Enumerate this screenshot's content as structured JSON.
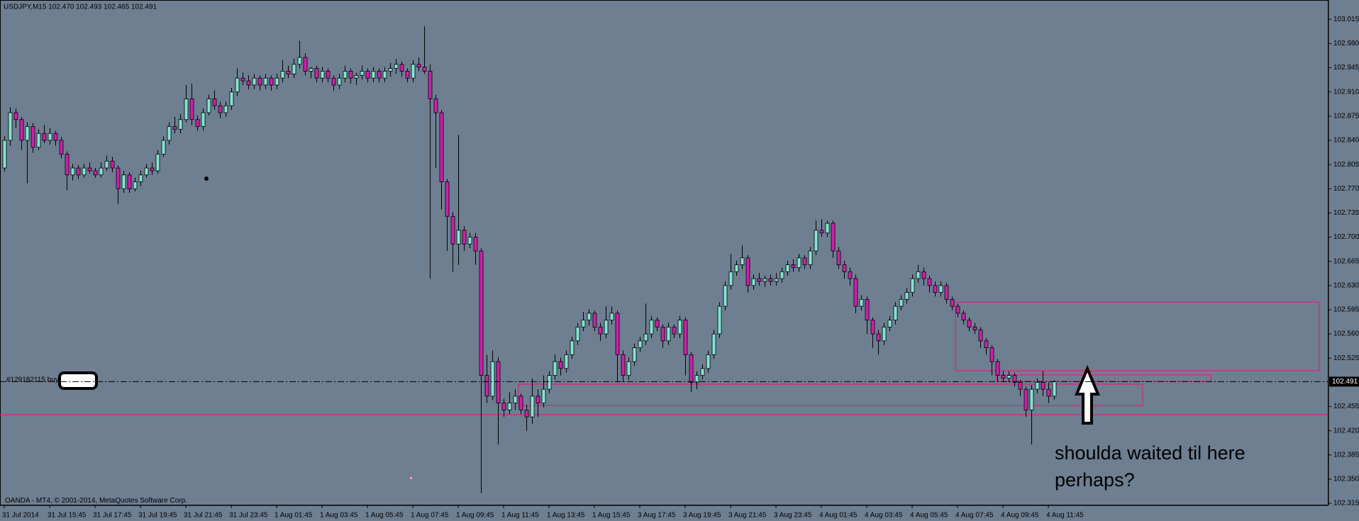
{
  "chart_data": {
    "type": "candlestick",
    "title": "USDJPY,M15  102.470 102.493 102.465 102.491",
    "footer": "OANDA - MT4, © 2001-2014, MetaQuotes Software Corp.",
    "order_label": "#129182115 buy",
    "annotation": [
      "shoulda waited til here",
      "perhaps?"
    ],
    "current_price": 102.491,
    "up_color": "#86e3d2",
    "down_color": "#cc22aa",
    "wick_color": "#000000",
    "ylim": [
      102.312,
      103.043
    ],
    "yticks": [
      103.015,
      {
        "value": 102.98,
        "label": "102.980"
      },
      102.945,
      {
        "value": 102.91,
        "label": "102.910"
      },
      102.875,
      {
        "value": 102.84,
        "label": "102.840"
      },
      102.805,
      {
        "value": 102.77,
        "label": "102.770"
      },
      102.735,
      {
        "value": 102.7,
        "label": "102.700"
      },
      102.665,
      {
        "value": 102.63,
        "label": "102.630"
      },
      102.595,
      {
        "value": 102.56,
        "label": "102.560"
      },
      102.525,
      102.455,
      {
        "value": 102.42,
        "label": "102.420"
      },
      102.385,
      {
        "value": 102.35,
        "label": "102.350"
      },
      102.315
    ],
    "x_tick_labels": [
      "31 Jul 2014",
      "31 Jul 15:45",
      "31 Jul 17:45",
      "31 Jul 19:45",
      "31 Jul 21:45",
      "31 Jul 23:45",
      "1 Aug 01:45",
      "1 Aug 03:45",
      "1 Aug 05:45",
      "1 Aug 07:45",
      "1 Aug 09:45",
      "1 Aug 11:45",
      "1 Aug 13:45",
      "1 Aug 15:45",
      "3 Aug 17:45",
      "3 Aug 19:45",
      "3 Aug 21:45",
      "3 Aug 23:45",
      "4 Aug 01:45",
      "4 Aug 03:45",
      "4 Aug 05:45",
      "4 Aug 07:45",
      "4 Aug 09:45",
      "4 Aug 11:45"
    ],
    "ohlc": [
      [
        102.8,
        102.846,
        102.795,
        102.84
      ],
      [
        102.84,
        102.888,
        102.832,
        102.88
      ],
      [
        102.88,
        102.886,
        102.858,
        102.87
      ],
      [
        102.87,
        102.874,
        102.826,
        102.84
      ],
      [
        102.84,
        102.866,
        102.778,
        102.86
      ],
      [
        102.86,
        102.865,
        102.822,
        102.83
      ],
      [
        102.83,
        102.856,
        102.826,
        102.85
      ],
      [
        102.85,
        102.862,
        102.836,
        102.84
      ],
      [
        102.84,
        102.858,
        102.834,
        102.85
      ],
      [
        102.85,
        102.854,
        102.832,
        102.84
      ],
      [
        102.84,
        102.845,
        102.814,
        102.82
      ],
      [
        102.82,
        102.824,
        102.768,
        102.79
      ],
      [
        102.79,
        102.806,
        102.782,
        102.8
      ],
      [
        102.8,
        102.804,
        102.784,
        102.79
      ],
      [
        102.79,
        102.806,
        102.786,
        102.8
      ],
      [
        102.8,
        102.808,
        102.792,
        102.796
      ],
      [
        102.796,
        102.8,
        102.786,
        102.79
      ],
      [
        102.79,
        102.808,
        102.786,
        102.8
      ],
      [
        102.8,
        102.818,
        102.796,
        102.81
      ],
      [
        102.81,
        102.816,
        102.794,
        102.8
      ],
      [
        102.8,
        102.804,
        102.748,
        102.77
      ],
      [
        102.77,
        102.796,
        102.764,
        102.79
      ],
      [
        102.79,
        102.794,
        102.764,
        102.77
      ],
      [
        102.77,
        102.786,
        102.766,
        102.78
      ],
      [
        102.78,
        102.796,
        102.774,
        102.79
      ],
      [
        102.79,
        102.806,
        102.786,
        102.8
      ],
      [
        102.8,
        102.808,
        102.79,
        102.796
      ],
      [
        102.796,
        102.826,
        102.792,
        102.82
      ],
      [
        102.82,
        102.846,
        102.816,
        102.84
      ],
      [
        102.84,
        102.866,
        102.834,
        102.86
      ],
      [
        102.86,
        102.874,
        102.85,
        102.856
      ],
      [
        102.856,
        102.878,
        102.85,
        102.87
      ],
      [
        102.87,
        102.92,
        102.866,
        102.9
      ],
      [
        102.9,
        102.922,
        102.862,
        102.87
      ],
      [
        102.87,
        102.876,
        102.854,
        102.86
      ],
      [
        102.86,
        102.886,
        102.854,
        102.88
      ],
      [
        102.88,
        102.906,
        102.876,
        102.9
      ],
      [
        102.9,
        102.912,
        102.884,
        102.89
      ],
      [
        102.89,
        102.896,
        102.872,
        102.88
      ],
      [
        102.88,
        102.896,
        102.874,
        102.89
      ],
      [
        102.89,
        102.916,
        102.884,
        102.91
      ],
      [
        102.91,
        102.944,
        102.904,
        102.93
      ],
      [
        102.93,
        102.938,
        102.92,
        102.926
      ],
      [
        102.926,
        102.934,
        102.914,
        102.92
      ],
      [
        102.92,
        102.936,
        102.914,
        102.93
      ],
      [
        102.93,
        102.934,
        102.912,
        102.92
      ],
      [
        102.92,
        102.936,
        102.914,
        102.93
      ],
      [
        102.93,
        102.934,
        102.912,
        102.92
      ],
      [
        102.92,
        102.936,
        102.914,
        102.93
      ],
      [
        102.93,
        102.956,
        102.924,
        102.94
      ],
      [
        102.94,
        102.948,
        102.93,
        102.936
      ],
      [
        102.936,
        102.958,
        102.93,
        102.95
      ],
      [
        102.95,
        102.984,
        102.944,
        102.96
      ],
      [
        102.96,
        102.966,
        102.934,
        102.94
      ],
      [
        102.94,
        102.946,
        102.93,
        102.944
      ],
      [
        102.944,
        102.948,
        102.924,
        102.93
      ],
      [
        102.93,
        102.946,
        102.924,
        102.94
      ],
      [
        102.94,
        102.944,
        102.924,
        102.93
      ],
      [
        102.93,
        102.934,
        102.912,
        102.92
      ],
      [
        102.92,
        102.936,
        102.914,
        102.93
      ],
      [
        102.93,
        102.948,
        102.924,
        102.94
      ],
      [
        102.94,
        102.944,
        102.922,
        102.93
      ],
      [
        102.93,
        102.938,
        102.92,
        102.934
      ],
      [
        102.934,
        102.948,
        102.928,
        102.94
      ],
      [
        102.94,
        102.944,
        102.924,
        102.93
      ],
      [
        102.93,
        102.946,
        102.924,
        102.94
      ],
      [
        102.94,
        102.944,
        102.924,
        102.93
      ],
      [
        102.93,
        102.946,
        102.924,
        102.94
      ],
      [
        102.94,
        102.952,
        102.932,
        102.944
      ],
      [
        102.944,
        102.958,
        102.936,
        102.95
      ],
      [
        102.95,
        102.954,
        102.932,
        102.94
      ],
      [
        102.94,
        102.944,
        102.924,
        102.93
      ],
      [
        102.93,
        102.956,
        102.924,
        102.95
      ],
      [
        102.95,
        102.96,
        102.94,
        102.946
      ],
      [
        102.946,
        103.005,
        102.936,
        102.94
      ],
      [
        102.94,
        102.95,
        102.64,
        102.9
      ],
      [
        102.9,
        102.906,
        102.8,
        102.88
      ],
      [
        102.88,
        102.884,
        102.74,
        102.78
      ],
      [
        102.78,
        102.784,
        102.68,
        102.73
      ],
      [
        102.73,
        102.736,
        102.65,
        102.69
      ],
      [
        102.69,
        102.848,
        102.66,
        102.71
      ],
      [
        102.71,
        102.716,
        102.68,
        102.69
      ],
      [
        102.69,
        102.706,
        102.684,
        102.7
      ],
      [
        102.7,
        102.706,
        102.66,
        102.68
      ],
      [
        102.68,
        102.684,
        102.33,
        102.5
      ],
      [
        102.5,
        102.53,
        102.46,
        102.47
      ],
      [
        102.47,
        102.536,
        102.464,
        102.52
      ],
      [
        102.52,
        102.526,
        102.4,
        102.46
      ],
      [
        102.46,
        102.466,
        102.44,
        102.45
      ],
      [
        102.45,
        102.476,
        102.444,
        102.46
      ],
      [
        102.46,
        102.48,
        102.45,
        102.47
      ],
      [
        102.47,
        102.474,
        102.444,
        102.45
      ],
      [
        102.45,
        102.458,
        102.42,
        102.44
      ],
      [
        102.44,
        102.496,
        102.43,
        102.47
      ],
      [
        102.47,
        102.48,
        102.44,
        102.46
      ],
      [
        102.46,
        102.5,
        102.454,
        102.48
      ],
      [
        102.48,
        102.506,
        102.474,
        102.5
      ],
      [
        102.5,
        102.53,
        102.494,
        102.52
      ],
      [
        102.52,
        102.526,
        102.5,
        102.51
      ],
      [
        102.51,
        102.536,
        102.504,
        102.53
      ],
      [
        102.53,
        102.556,
        102.524,
        102.55
      ],
      [
        102.55,
        102.576,
        102.544,
        102.57
      ],
      [
        102.57,
        102.592,
        102.564,
        102.58
      ],
      [
        102.58,
        102.596,
        102.572,
        102.59
      ],
      [
        102.59,
        102.594,
        102.564,
        102.57
      ],
      [
        102.57,
        102.576,
        102.55,
        102.56
      ],
      [
        102.56,
        102.6,
        102.554,
        102.58
      ],
      [
        102.58,
        102.6,
        102.574,
        102.59
      ],
      [
        102.59,
        102.594,
        102.49,
        102.53
      ],
      [
        102.53,
        102.536,
        102.49,
        102.5
      ],
      [
        102.5,
        102.526,
        102.494,
        102.52
      ],
      [
        102.52,
        102.546,
        102.514,
        102.54
      ],
      [
        102.54,
        102.556,
        102.534,
        102.55
      ],
      [
        102.55,
        102.604,
        102.544,
        102.56
      ],
      [
        102.56,
        102.586,
        102.554,
        102.58
      ],
      [
        102.58,
        102.584,
        102.564,
        102.57
      ],
      [
        102.57,
        102.574,
        102.54,
        102.55
      ],
      [
        102.55,
        102.576,
        102.544,
        102.57
      ],
      [
        102.57,
        102.574,
        102.554,
        102.56
      ],
      [
        102.56,
        102.586,
        102.554,
        102.58
      ],
      [
        102.58,
        102.584,
        102.5,
        102.53
      ],
      [
        102.53,
        102.534,
        102.476,
        102.49
      ],
      [
        102.49,
        102.506,
        102.48,
        102.5
      ],
      [
        102.5,
        102.516,
        102.494,
        102.51
      ],
      [
        102.51,
        102.536,
        102.504,
        102.53
      ],
      [
        102.53,
        102.566,
        102.524,
        102.56
      ],
      [
        102.56,
        102.606,
        102.554,
        102.6
      ],
      [
        102.6,
        102.636,
        102.594,
        102.63
      ],
      [
        102.63,
        102.676,
        102.624,
        102.65
      ],
      [
        102.65,
        102.666,
        102.644,
        102.66
      ],
      [
        102.66,
        102.688,
        102.654,
        102.67
      ],
      [
        102.67,
        102.674,
        102.62,
        102.63
      ],
      [
        102.63,
        102.646,
        102.624,
        102.64
      ],
      [
        102.64,
        102.648,
        102.63,
        102.636
      ],
      [
        102.636,
        102.644,
        102.628,
        102.64
      ],
      [
        102.64,
        102.646,
        102.63,
        102.636
      ],
      [
        102.636,
        102.648,
        102.63,
        102.64
      ],
      [
        102.64,
        102.656,
        102.634,
        102.65
      ],
      [
        102.65,
        102.666,
        102.644,
        102.66
      ],
      [
        102.66,
        102.668,
        102.65,
        102.656
      ],
      [
        102.656,
        102.676,
        102.65,
        102.67
      ],
      [
        102.67,
        102.674,
        102.654,
        102.66
      ],
      [
        102.66,
        102.686,
        102.654,
        102.68
      ],
      [
        102.68,
        102.724,
        102.674,
        102.71
      ],
      [
        102.71,
        102.726,
        102.7,
        102.706
      ],
      [
        102.706,
        102.724,
        102.7,
        102.72
      ],
      [
        102.72,
        102.724,
        102.67,
        102.68
      ],
      [
        102.68,
        102.686,
        102.654,
        102.66
      ],
      [
        102.66,
        102.666,
        102.64,
        102.65
      ],
      [
        102.65,
        102.656,
        102.63,
        102.64
      ],
      [
        102.64,
        102.646,
        102.59,
        102.6
      ],
      [
        102.6,
        102.616,
        102.594,
        102.61
      ],
      [
        102.61,
        102.614,
        102.56,
        102.58
      ],
      [
        102.58,
        102.584,
        102.54,
        102.56
      ],
      [
        102.56,
        102.566,
        102.53,
        102.55
      ],
      [
        102.55,
        102.576,
        102.544,
        102.57
      ],
      [
        102.57,
        102.586,
        102.564,
        102.58
      ],
      [
        102.58,
        102.606,
        102.574,
        102.6
      ],
      [
        102.6,
        102.616,
        102.594,
        102.61
      ],
      [
        102.61,
        102.626,
        102.604,
        102.62
      ],
      [
        102.62,
        102.646,
        102.614,
        102.64
      ],
      [
        102.64,
        102.66,
        102.634,
        102.65
      ],
      [
        102.65,
        102.656,
        102.63,
        102.64
      ],
      [
        102.64,
        102.644,
        102.62,
        102.63
      ],
      [
        102.63,
        102.636,
        102.614,
        102.62
      ],
      [
        102.62,
        102.636,
        102.614,
        102.63
      ],
      [
        102.63,
        102.634,
        102.604,
        102.61
      ],
      [
        102.61,
        102.614,
        102.594,
        102.6
      ],
      [
        102.6,
        102.604,
        102.584,
        102.59
      ],
      [
        102.59,
        102.594,
        102.574,
        102.58
      ],
      [
        102.58,
        102.584,
        102.564,
        102.57
      ],
      [
        102.57,
        102.576,
        102.56,
        102.566
      ],
      [
        102.566,
        102.57,
        102.54,
        102.55
      ],
      [
        102.55,
        102.554,
        102.53,
        102.54
      ],
      [
        102.54,
        102.544,
        102.5,
        102.52
      ],
      [
        102.52,
        102.524,
        102.49,
        102.5
      ],
      [
        102.5,
        102.506,
        102.49,
        102.496
      ],
      [
        102.496,
        102.506,
        102.49,
        102.5
      ],
      [
        102.5,
        102.504,
        102.484,
        102.49
      ],
      [
        102.49,
        102.494,
        102.47,
        102.48
      ],
      [
        102.48,
        102.484,
        102.44,
        102.45
      ],
      [
        102.45,
        102.486,
        102.4,
        102.48
      ],
      [
        102.48,
        102.496,
        102.474,
        102.49
      ],
      [
        102.49,
        102.506,
        102.47,
        102.48
      ],
      [
        102.48,
        102.49,
        102.46,
        102.47
      ],
      [
        102.47,
        102.493,
        102.465,
        102.491
      ]
    ]
  }
}
